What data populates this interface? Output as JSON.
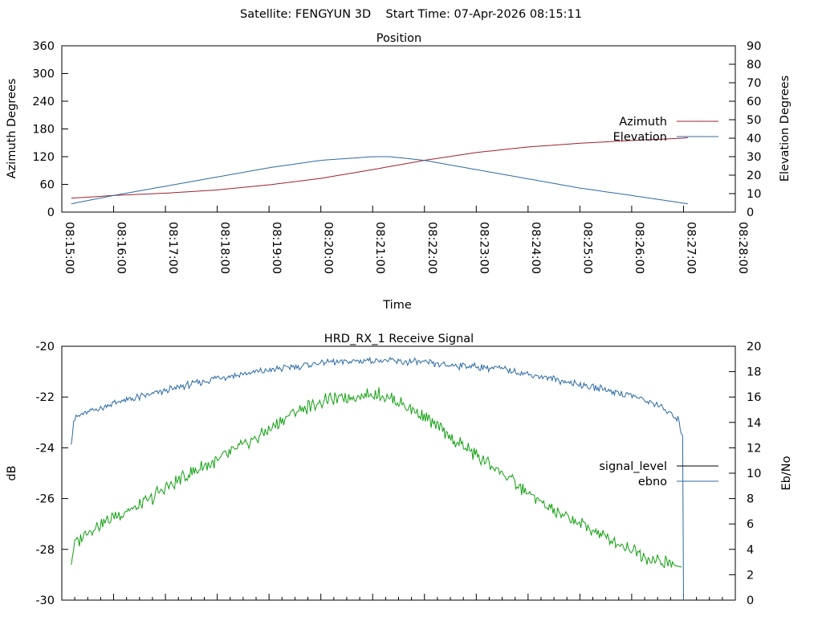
{
  "page_title": "Satellite: FENGYUN 3D    Start Time: 07-Apr-2026 08:15:11",
  "chart_data": [
    {
      "type": "line",
      "title": "Position",
      "xlabel": "Time",
      "ylabel": "Azimuth Degrees",
      "y2label": "Elevation Degrees",
      "x_ticks": [
        "08:15:00",
        "08:16:00",
        "08:17:00",
        "08:18:00",
        "08:19:00",
        "08:20:00",
        "08:21:00",
        "08:22:00",
        "08:23:00",
        "08:24:00",
        "08:25:00",
        "08:26:00",
        "08:27:00",
        "08:28:00"
      ],
      "xlim_seconds": [
        0,
        780
      ],
      "ylim": [
        0,
        360
      ],
      "y_ticks": [
        0,
        60,
        120,
        180,
        240,
        300,
        360
      ],
      "y2lim": [
        0,
        90
      ],
      "y2_ticks": [
        0,
        10,
        20,
        30,
        40,
        50,
        60,
        70,
        80,
        90
      ],
      "legend_position": "right",
      "series": [
        {
          "name": "Azimuth",
          "axis": "y",
          "color": "#a0212f",
          "x_seconds": [
            11,
            60,
            120,
            180,
            240,
            300,
            360,
            420,
            480,
            540,
            600,
            660,
            720,
            725
          ],
          "values": [
            30,
            36,
            41,
            48,
            59,
            73,
            92,
            112,
            129,
            141,
            149,
            155,
            160,
            161
          ]
        },
        {
          "name": "Elevation",
          "axis": "y2",
          "color": "#2c6aa3",
          "x_seconds": [
            11,
            60,
            120,
            180,
            240,
            300,
            360,
            380,
            420,
            480,
            540,
            600,
            660,
            725
          ],
          "values": [
            4.5,
            9,
            14,
            19,
            24,
            28,
            30,
            30,
            28,
            23,
            18,
            13,
            9,
            4.5
          ]
        }
      ]
    },
    {
      "type": "line",
      "title": "HRD_RX_1 Receive Signal",
      "ylabel": "dB",
      "y2label": "Eb/No",
      "xlim_seconds": [
        0,
        780
      ],
      "ylim": [
        -30,
        -20
      ],
      "y_ticks": [
        -30,
        -28,
        -26,
        -24,
        -22,
        -20
      ],
      "y2lim": [
        0,
        20
      ],
      "y2_ticks": [
        0,
        2,
        4,
        6,
        8,
        10,
        12,
        14,
        16,
        18,
        20
      ],
      "legend_position": "right",
      "series": [
        {
          "name": "signal_level",
          "axis": "y",
          "color": "#000000",
          "legend_only": true,
          "x_seconds": [],
          "values": []
        },
        {
          "name": "ebno",
          "axis": "y2",
          "color": "#2c6aa3",
          "x_seconds": [
            11,
            14,
            30,
            60,
            90,
            120,
            150,
            180,
            210,
            240,
            270,
            300,
            330,
            360,
            390,
            420,
            450,
            480,
            510,
            540,
            570,
            600,
            630,
            660,
            690,
            714,
            719,
            720
          ],
          "values": [
            12.5,
            14.3,
            14.8,
            15.5,
            16.0,
            16.5,
            17.0,
            17.5,
            17.8,
            18.1,
            18.4,
            18.7,
            18.8,
            18.9,
            18.8,
            18.7,
            18.5,
            18.4,
            18.2,
            17.8,
            17.4,
            17.0,
            16.6,
            16.1,
            15.4,
            14.2,
            13.0,
            0
          ]
        },
        {
          "name": "",
          "axis": "y",
          "color": "#12a012",
          "x_seconds": [
            11,
            14,
            30,
            60,
            90,
            120,
            150,
            180,
            210,
            240,
            270,
            300,
            330,
            360,
            370,
            390,
            420,
            450,
            480,
            510,
            540,
            570,
            600,
            630,
            660,
            690,
            710,
            718
          ],
          "values": [
            -28.6,
            -27.8,
            -27.3,
            -26.7,
            -26.3,
            -25.6,
            -25.0,
            -24.5,
            -23.9,
            -23.3,
            -22.6,
            -22.2,
            -22.0,
            -21.9,
            -21.9,
            -22.2,
            -22.8,
            -23.6,
            -24.3,
            -25.0,
            -25.8,
            -26.5,
            -27.0,
            -27.5,
            -28.0,
            -28.5,
            -28.6,
            -28.7
          ]
        }
      ]
    }
  ]
}
